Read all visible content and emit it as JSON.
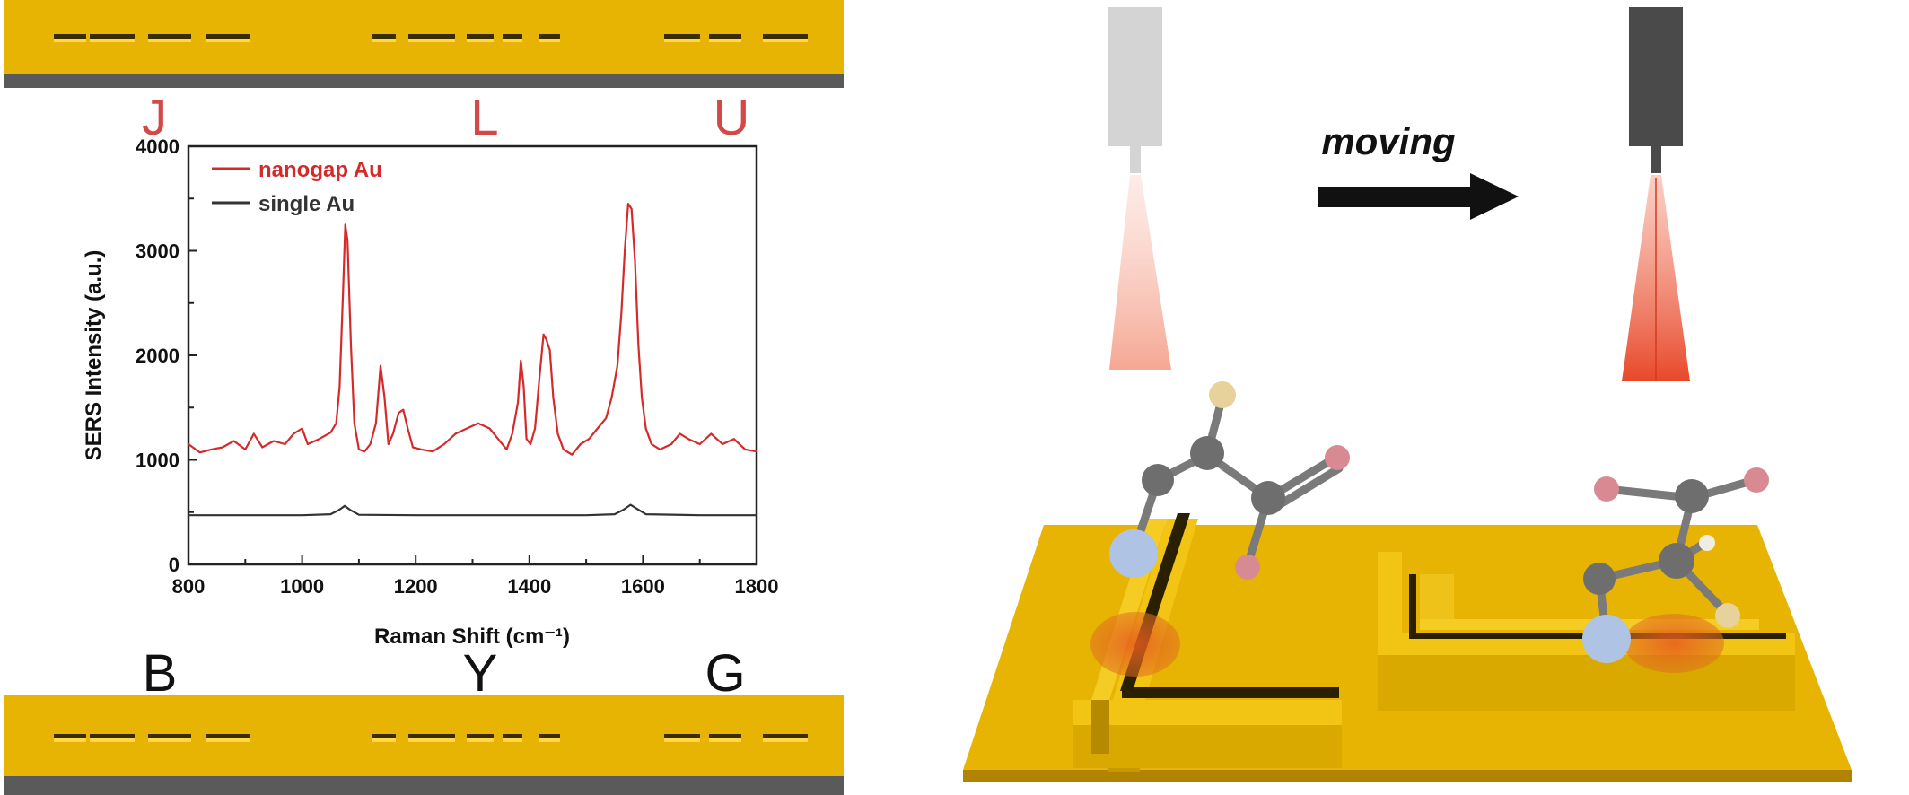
{
  "colors": {
    "gold": "#E7B404",
    "gold_top": "#F2C414",
    "gold_dark": "#A57C00",
    "substrate_gray": "#5A5A5A",
    "red_curve": "#D42A2A",
    "black_curve": "#333333",
    "letter_red": "#D44848",
    "probe_light": "#D4D4D4",
    "probe_dark": "#4A4A4A",
    "laser": "#F05030",
    "atom_gray": "#6E6E6E",
    "atom_pink": "#D88A92",
    "atom_beige": "#E6D29A",
    "atom_blue": "#AFC3E4"
  },
  "top_letters": [
    "J",
    "L",
    "U"
  ],
  "bottom_letters": [
    "B",
    "Y",
    "G"
  ],
  "scheme": {
    "moving_label": "moving"
  },
  "chart_data": {
    "type": "line",
    "title": "",
    "xlabel": "Raman Shift (cm⁻¹)",
    "ylabel": "SERS Intensity (a.u.)",
    "xlim": [
      800,
      1800
    ],
    "ylim": [
      0,
      4000
    ],
    "x_ticks": [
      800,
      1000,
      1200,
      1400,
      1600,
      1800
    ],
    "y_ticks": [
      0,
      1000,
      2000,
      3000,
      4000
    ],
    "legend_position": "top-left",
    "grid": false,
    "series": [
      {
        "name": "nanogap Au",
        "color": "#D42A2A",
        "x": [
          800,
          820,
          840,
          860,
          880,
          900,
          915,
          930,
          950,
          970,
          985,
          1000,
          1010,
          1030,
          1050,
          1060,
          1066,
          1072,
          1076,
          1080,
          1086,
          1092,
          1100,
          1110,
          1120,
          1130,
          1138,
          1145,
          1152,
          1160,
          1170,
          1178,
          1186,
          1195,
          1210,
          1230,
          1250,
          1270,
          1290,
          1310,
          1330,
          1345,
          1360,
          1370,
          1380,
          1385,
          1390,
          1395,
          1402,
          1410,
          1418,
          1425,
          1430,
          1436,
          1442,
          1450,
          1460,
          1475,
          1490,
          1505,
          1520,
          1535,
          1545,
          1555,
          1562,
          1568,
          1574,
          1580,
          1586,
          1592,
          1598,
          1605,
          1615,
          1630,
          1650,
          1665,
          1680,
          1700,
          1720,
          1740,
          1760,
          1780,
          1800
        ],
        "y": [
          1150,
          1070,
          1100,
          1120,
          1180,
          1100,
          1250,
          1120,
          1180,
          1150,
          1250,
          1300,
          1150,
          1200,
          1260,
          1350,
          1700,
          2600,
          3250,
          3100,
          2100,
          1350,
          1100,
          1080,
          1150,
          1350,
          1900,
          1600,
          1150,
          1250,
          1450,
          1480,
          1300,
          1120,
          1100,
          1080,
          1150,
          1250,
          1300,
          1350,
          1300,
          1200,
          1100,
          1250,
          1550,
          1950,
          1700,
          1200,
          1150,
          1300,
          1800,
          2200,
          2150,
          2050,
          1600,
          1250,
          1100,
          1050,
          1150,
          1200,
          1300,
          1400,
          1600,
          1900,
          2400,
          3000,
          3450,
          3400,
          2900,
          2100,
          1600,
          1300,
          1150,
          1100,
          1150,
          1250,
          1200,
          1150,
          1250,
          1150,
          1200,
          1100,
          1080
        ]
      },
      {
        "name": "single Au",
        "color": "#333333",
        "x": [
          800,
          900,
          1000,
          1050,
          1065,
          1075,
          1085,
          1100,
          1200,
          1300,
          1400,
          1500,
          1550,
          1565,
          1578,
          1590,
          1605,
          1700,
          1800
        ],
        "y": [
          470,
          470,
          470,
          480,
          520,
          560,
          520,
          475,
          470,
          470,
          470,
          470,
          480,
          520,
          570,
          530,
          480,
          470,
          470
        ]
      }
    ]
  }
}
